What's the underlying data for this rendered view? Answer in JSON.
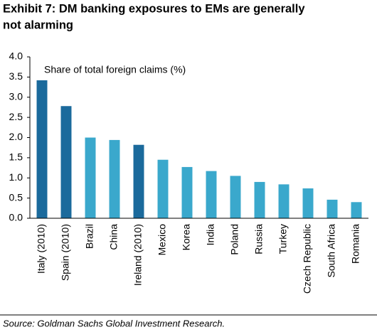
{
  "chart_data": {
    "type": "bar",
    "title_lines": [
      "Exhibit 7: DM banking exposures to EMs are generally",
      "not alarming"
    ],
    "annotation": "Share of total foreign claims (%)",
    "source": "Source: Goldman Sachs Global Investment Research.",
    "categories": [
      "Italy (2010)",
      "Spain (2010)",
      "Brazil",
      "China",
      "Ireland (2010)",
      "Mexico",
      "Korea",
      "India",
      "Poland",
      "Russia",
      "Turkey",
      "Czech Republic",
      "South Africa",
      "Romania"
    ],
    "values": [
      3.42,
      2.78,
      2.0,
      1.94,
      1.82,
      1.45,
      1.27,
      1.17,
      1.05,
      0.9,
      0.84,
      0.74,
      0.46,
      0.4
    ],
    "colors": [
      "#1b6a9c",
      "#1b6a9c",
      "#3aa8cc",
      "#3aa8cc",
      "#1b6a9c",
      "#3aa8cc",
      "#3aa8cc",
      "#3aa8cc",
      "#3aa8cc",
      "#3aa8cc",
      "#3aa8cc",
      "#3aa8cc",
      "#3aa8cc",
      "#3aa8cc"
    ],
    "ylim": [
      0,
      4
    ],
    "yticks": [
      {
        "value": 0,
        "label": "0.0"
      },
      0.5,
      {
        "value": 1,
        "label": "1.0"
      },
      1.5,
      {
        "value": 2,
        "label": "2.0"
      },
      2.5,
      {
        "value": 3,
        "label": "3.0"
      },
      3.5,
      {
        "value": 4,
        "label": "4.0"
      }
    ],
    "grid": false
  }
}
